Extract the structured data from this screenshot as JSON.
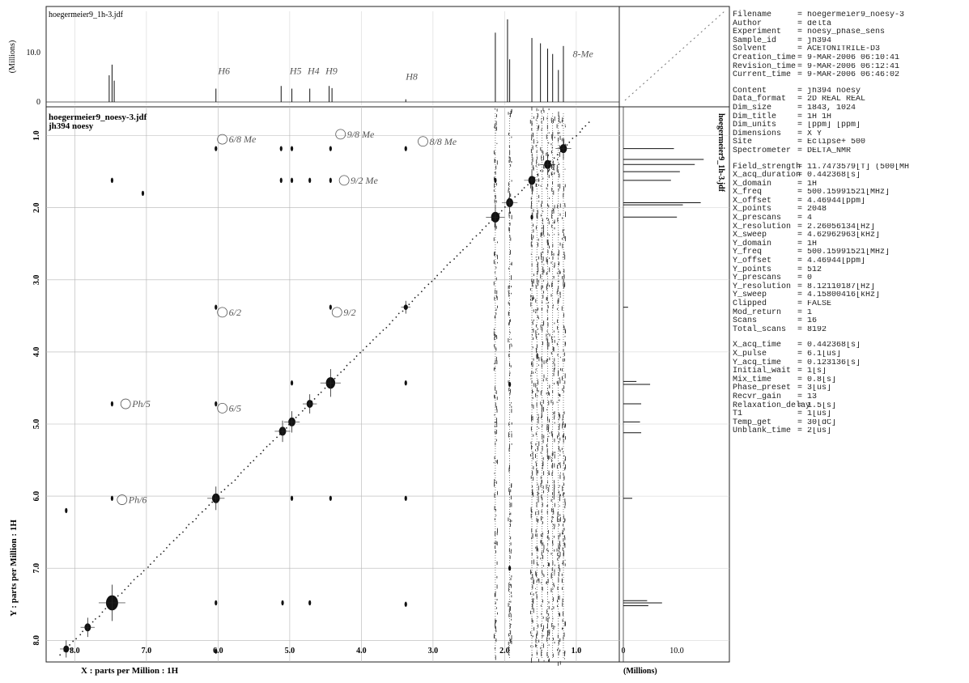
{
  "top_projection": {
    "file_label": "hoegermeier9_1h-3.jdf",
    "ylabel": "(Millions)",
    "ytick_value": "10.0",
    "ytick_zero": "0"
  },
  "right_projection": {
    "file_label": "hoegermeier9_1h-3.jdf",
    "xlabel": "(Millions)",
    "xtick_zero": "0",
    "xtick_value": "10.0"
  },
  "chart_data": {
    "type": "heatmap",
    "title_lines": [
      "hoegermeier9_noesy-3.jdf",
      "jh394 noesy"
    ],
    "xlabel": "X : parts per Million : 1H",
    "ylabel": "Y : parts per Million : 1H",
    "xlim": [
      8.4,
      0.4
    ],
    "ylim": [
      0.6,
      8.3
    ],
    "x_ticks": [
      8.0,
      7.0,
      6.0,
      5.0,
      4.0,
      3.0,
      2.0,
      1.0
    ],
    "y_ticks": [
      1.0,
      2.0,
      3.0,
      4.0,
      5.0,
      6.0,
      7.0,
      8.0
    ],
    "diagonal_peaks": [
      {
        "ppm": 7.48,
        "size": 3.4
      },
      {
        "ppm": 7.82,
        "size": 1.8
      },
      {
        "ppm": 8.12,
        "size": 1.6
      },
      {
        "ppm": 6.03,
        "size": 2.2
      },
      {
        "ppm": 5.1,
        "size": 2.0
      },
      {
        "ppm": 4.97,
        "size": 2.0
      },
      {
        "ppm": 4.72,
        "size": 1.8
      },
      {
        "ppm": 4.43,
        "size": 2.6
      },
      {
        "ppm": 3.38,
        "size": 1.2
      },
      {
        "ppm": 2.13,
        "size": 2.4
      },
      {
        "ppm": 1.93,
        "size": 2.0
      },
      {
        "ppm": 1.62,
        "size": 2.0
      },
      {
        "ppm": 1.4,
        "size": 2.0
      },
      {
        "ppm": 1.18,
        "size": 2.0
      }
    ],
    "cross_peaks": [
      {
        "x": 6.03,
        "y": 1.18
      },
      {
        "x": 5.12,
        "y": 1.62
      },
      {
        "x": 4.97,
        "y": 1.62
      },
      {
        "x": 4.72,
        "y": 1.62
      },
      {
        "x": 4.43,
        "y": 1.62
      },
      {
        "x": 4.43,
        "y": 1.18
      },
      {
        "x": 4.97,
        "y": 1.18
      },
      {
        "x": 3.38,
        "y": 1.18
      },
      {
        "x": 6.03,
        "y": 3.38
      },
      {
        "x": 4.43,
        "y": 3.38
      },
      {
        "x": 3.38,
        "y": 3.38
      },
      {
        "x": 7.48,
        "y": 4.72
      },
      {
        "x": 6.03,
        "y": 4.72
      },
      {
        "x": 3.38,
        "y": 4.43
      },
      {
        "x": 7.48,
        "y": 6.03
      },
      {
        "x": 4.43,
        "y": 6.03
      },
      {
        "x": 4.97,
        "y": 6.03
      },
      {
        "x": 3.38,
        "y": 6.03
      },
      {
        "x": 4.72,
        "y": 7.48
      },
      {
        "x": 6.03,
        "y": 7.48
      },
      {
        "x": 5.1,
        "y": 7.48
      },
      {
        "x": 3.38,
        "y": 7.5
      },
      {
        "x": 8.12,
        "y": 6.2
      },
      {
        "x": 6.03,
        "y": 8.15
      },
      {
        "x": 8.12,
        "y": 8.12
      },
      {
        "x": 7.48,
        "y": 1.62
      },
      {
        "x": 5.12,
        "y": 1.18
      },
      {
        "x": 4.97,
        "y": 4.43
      },
      {
        "x": 7.05,
        "y": 1.8
      },
      {
        "x": 2.13,
        "y": 1.62
      },
      {
        "x": 1.62,
        "y": 2.13
      },
      {
        "x": 1.93,
        "y": 4.45
      },
      {
        "x": 1.93,
        "y": 7.0
      }
    ],
    "t1_noise_columns_ppm": [
      2.13,
      1.93,
      1.62,
      1.55,
      1.48,
      1.4,
      1.33,
      1.25,
      1.18
    ],
    "top_spectrum": [
      {
        "ppm": 7.48,
        "height": 7.0
      },
      {
        "ppm": 7.52,
        "height": 5.0
      },
      {
        "ppm": 7.45,
        "height": 4.0
      },
      {
        "ppm": 6.03,
        "height": 2.5
      },
      {
        "ppm": 5.12,
        "height": 3.0
      },
      {
        "ppm": 4.97,
        "height": 2.5
      },
      {
        "ppm": 4.72,
        "height": 2.5
      },
      {
        "ppm": 4.45,
        "height": 3.0
      },
      {
        "ppm": 4.41,
        "height": 2.6
      },
      {
        "ppm": 3.38,
        "height": 0.5
      },
      {
        "ppm": 2.13,
        "height": 13.0
      },
      {
        "ppm": 1.96,
        "height": 15.5
      },
      {
        "ppm": 1.93,
        "height": 8.0
      },
      {
        "ppm": 1.62,
        "height": 12.0
      },
      {
        "ppm": 1.5,
        "height": 11.0
      },
      {
        "ppm": 1.4,
        "height": 10.0
      },
      {
        "ppm": 1.33,
        "height": 9.0
      },
      {
        "ppm": 1.18,
        "height": 10.5
      },
      {
        "ppm": 1.25,
        "height": 6.0
      }
    ],
    "right_spectrum": [
      {
        "ppm": 1.18,
        "height": 8.5
      },
      {
        "ppm": 1.33,
        "height": 13.5
      },
      {
        "ppm": 1.4,
        "height": 12.0
      },
      {
        "ppm": 1.5,
        "height": 9.5
      },
      {
        "ppm": 1.62,
        "height": 8.0
      },
      {
        "ppm": 1.93,
        "height": 13.0
      },
      {
        "ppm": 1.96,
        "height": 10.0
      },
      {
        "ppm": 2.13,
        "height": 9.0
      },
      {
        "ppm": 3.38,
        "height": 0.8
      },
      {
        "ppm": 4.41,
        "height": 2.2
      },
      {
        "ppm": 4.45,
        "height": 4.5
      },
      {
        "ppm": 4.72,
        "height": 3.0
      },
      {
        "ppm": 4.97,
        "height": 2.8
      },
      {
        "ppm": 5.12,
        "height": 3.0
      },
      {
        "ppm": 6.03,
        "height": 1.5
      },
      {
        "ppm": 7.45,
        "height": 4.0
      },
      {
        "ppm": 7.48,
        "height": 6.5
      },
      {
        "ppm": 7.52,
        "height": 4.2
      }
    ],
    "handwritten_annotations": [
      {
        "text": "H6",
        "x": 6.0,
        "y": -0.55
      },
      {
        "text": "H5",
        "x": 5.0,
        "y": -0.55
      },
      {
        "text": "H4",
        "x": 4.75,
        "y": -0.55
      },
      {
        "text": "H9",
        "x": 4.5,
        "y": -0.55
      },
      {
        "text": "H8",
        "x": 3.38,
        "y": -0.45
      },
      {
        "text": "8-Me",
        "x": 1.05,
        "y": -0.85
      },
      {
        "text": "6/8 Me",
        "x": 5.85,
        "y": 1.05
      },
      {
        "text": "9/8 Me",
        "x": 4.2,
        "y": 0.98
      },
      {
        "text": "8/8 Me",
        "x": 3.05,
        "y": 1.08
      },
      {
        "text": "9/2 Me",
        "x": 4.15,
        "y": 1.62
      },
      {
        "text": "6/2",
        "x": 5.85,
        "y": 3.45
      },
      {
        "text": "9/2",
        "x": 4.25,
        "y": 3.45
      },
      {
        "text": "6/5",
        "x": 5.85,
        "y": 4.78
      },
      {
        "text": "Ph/5",
        "x": 7.2,
        "y": 4.72
      },
      {
        "text": "Ph/6",
        "x": 7.25,
        "y": 6.05
      }
    ]
  },
  "parameters": [
    {
      "key": "Filename",
      "value": "= hoegermeier9_noesy-3"
    },
    {
      "key": "Author",
      "value": "= delta"
    },
    {
      "key": "Experiment",
      "value": "= noesy_phase_sens"
    },
    {
      "key": "Sample_id",
      "value": "= jh394"
    },
    {
      "key": "Solvent",
      "value": "= ACETONITRILE-D3"
    },
    {
      "key": "Creation_time",
      "value": "= 9-MAR-2006 06:10:41"
    },
    {
      "key": "Revision_time",
      "value": "= 9-MAR-2006 06:12:41"
    },
    {
      "key": "Current_time",
      "value": "= 9-MAR-2006 06:46:02"
    },
    {
      "key": "",
      "value": ""
    },
    {
      "key": "Content",
      "value": "= jh394 noesy"
    },
    {
      "key": "Data_format",
      "value": "= 2D REAL REAL"
    },
    {
      "key": "Dim_size",
      "value": "= 1843, 1024"
    },
    {
      "key": "Dim_title",
      "value": "= 1H 1H"
    },
    {
      "key": "Dim_units",
      "value": "= [ppm] [ppm]"
    },
    {
      "key": "Dimensions",
      "value": "= X Y"
    },
    {
      "key": "Site",
      "value": "= Eclipse+ 500"
    },
    {
      "key": "Spectrometer",
      "value": "= DELTA_NMR"
    },
    {
      "key": "",
      "value": ""
    },
    {
      "key": "Field_strength",
      "value": "= 11.7473579[T] (500[MH"
    },
    {
      "key": "X_acq_duration",
      "value": "= 0.442368[s]"
    },
    {
      "key": "X_domain",
      "value": "= 1H"
    },
    {
      "key": "X_freq",
      "value": "= 500.15991521[MHz]"
    },
    {
      "key": "X_offset",
      "value": "= 4.46944[ppm]"
    },
    {
      "key": "X_points",
      "value": "= 2048"
    },
    {
      "key": "X_prescans",
      "value": "= 4"
    },
    {
      "key": "X_resolution",
      "value": "= 2.26056134[Hz]"
    },
    {
      "key": "X_sweep",
      "value": "= 4.62962963[kHz]"
    },
    {
      "key": "Y_domain",
      "value": "= 1H"
    },
    {
      "key": "Y_freq",
      "value": "= 500.15991521[MHz]"
    },
    {
      "key": "Y_offset",
      "value": "= 4.46944[ppm]"
    },
    {
      "key": "Y_points",
      "value": "= 512"
    },
    {
      "key": "Y_prescans",
      "value": "= 0"
    },
    {
      "key": "Y_resolution",
      "value": "= 8.12110187[Hz]"
    },
    {
      "key": "Y_sweep",
      "value": "= 4.15800416[kHz]"
    },
    {
      "key": "Clipped",
      "value": "= FALSE"
    },
    {
      "key": "Mod_return",
      "value": "= 1"
    },
    {
      "key": "Scans",
      "value": "= 16"
    },
    {
      "key": "Total_scans",
      "value": "= 8192"
    },
    {
      "key": "",
      "value": ""
    },
    {
      "key": "X_acq_time",
      "value": "= 0.442368[s]"
    },
    {
      "key": "X_pulse",
      "value": "= 6.1[us]"
    },
    {
      "key": "Y_acq_time",
      "value": "= 0.123136[s]"
    },
    {
      "key": "Initial_wait",
      "value": "= 1[s]"
    },
    {
      "key": "Mix_time",
      "value": "= 0.8[s]"
    },
    {
      "key": "Phase_preset",
      "value": "= 3[us]"
    },
    {
      "key": "Recvr_gain",
      "value": "= 13"
    },
    {
      "key": "Relaxation_delay",
      "value": "= 1.5[s]"
    },
    {
      "key": "T1",
      "value": "= 1[us]"
    },
    {
      "key": "Temp_get",
      "value": "= 30[dC]"
    },
    {
      "key": "Unblank_time",
      "value": "= 2[us]"
    }
  ]
}
